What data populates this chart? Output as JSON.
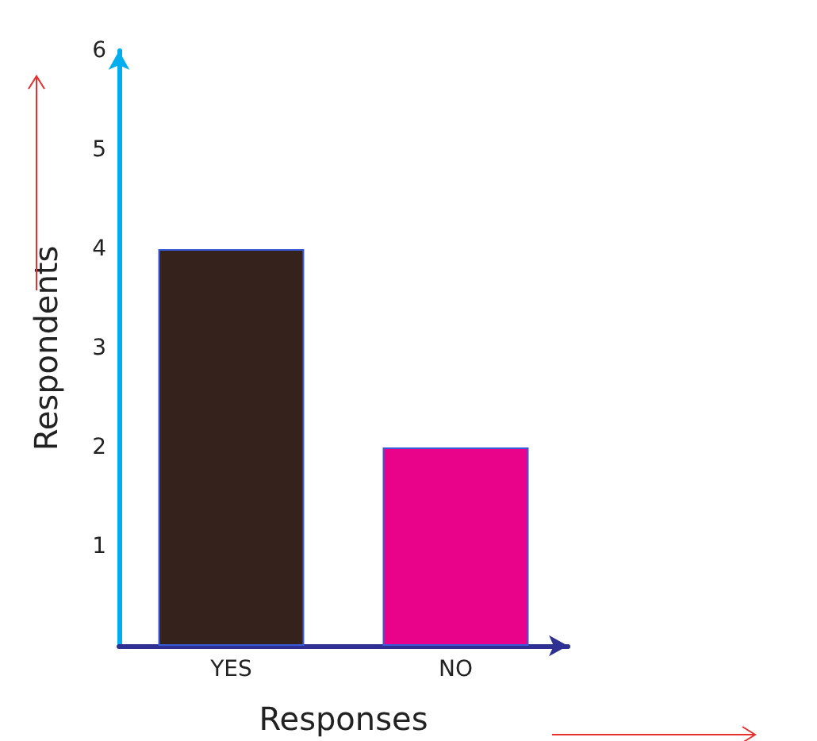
{
  "chart_data": {
    "type": "bar",
    "xlabel": "Responses",
    "ylabel": "Respondents",
    "categories": [
      "YES",
      "NO"
    ],
    "values": [
      4,
      2
    ],
    "colors": [
      "#35221d",
      "#e9038a"
    ],
    "ylim": [
      0,
      6
    ],
    "yticks": [
      1,
      2,
      3,
      4,
      5,
      6
    ],
    "grid": false
  }
}
